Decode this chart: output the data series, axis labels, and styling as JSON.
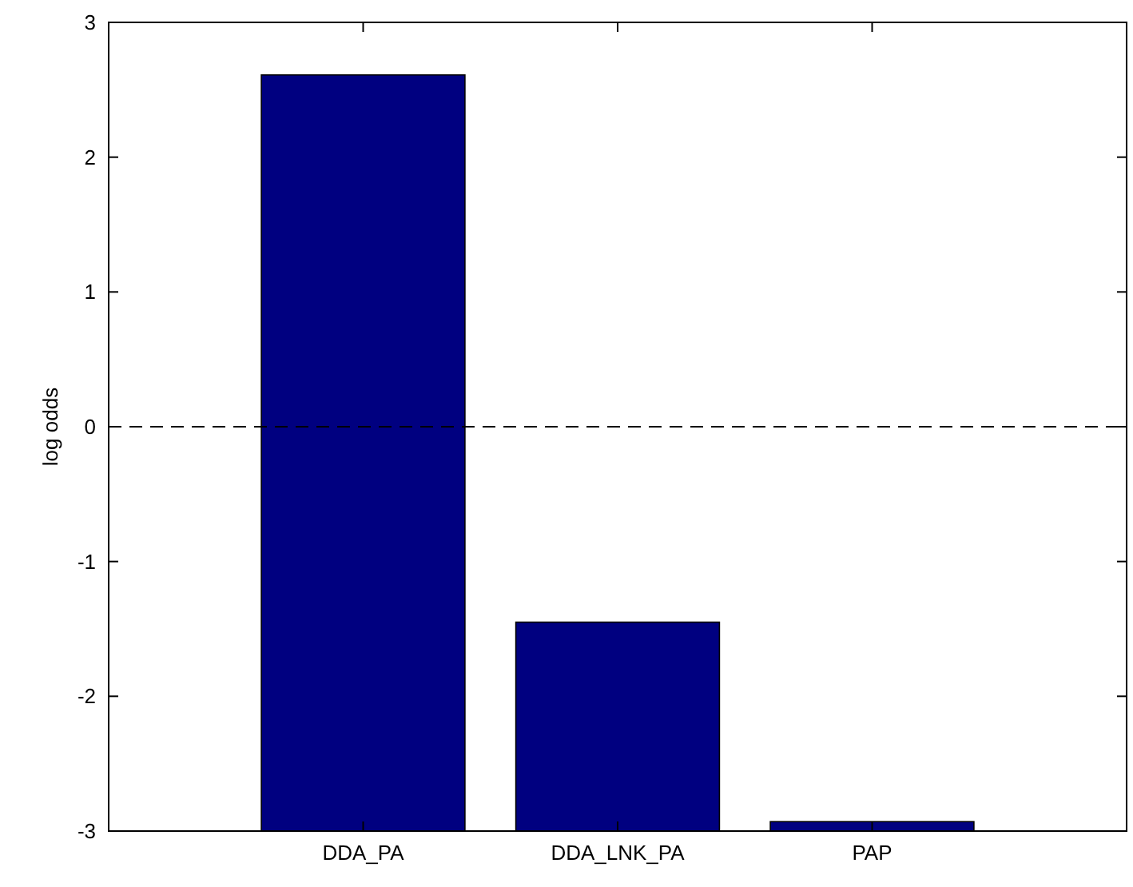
{
  "chart_data": {
    "type": "bar",
    "ylabel": "log odds",
    "categories": [
      "DDA_PA",
      "DDA_LNK_PA",
      "PAP"
    ],
    "values": [
      5.61,
      1.55,
      0.07
    ],
    "base": [
      -3,
      -3,
      -3
    ],
    "color": "#000080",
    "ylim": [
      -3,
      3
    ],
    "yticks": [
      -3,
      -2,
      -1,
      0,
      1,
      2,
      3
    ],
    "grid": false,
    "ref_lines": [
      {
        "axis": "y",
        "value": 0,
        "line_style": "dashed",
        "color": "#000000"
      }
    ]
  }
}
